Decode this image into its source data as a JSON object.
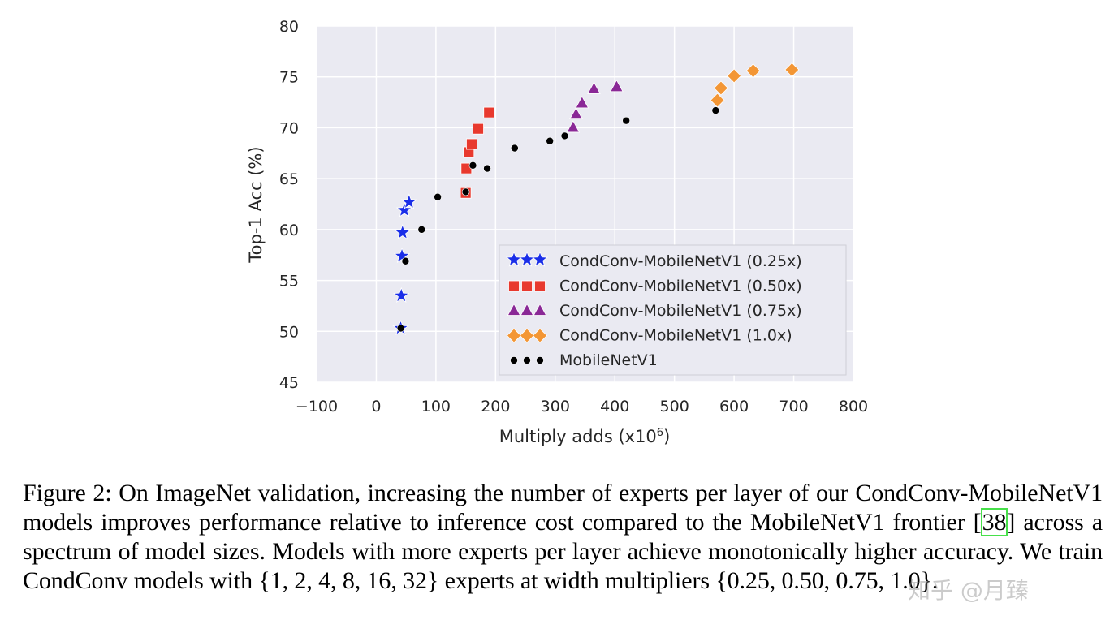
{
  "chart_data": {
    "type": "scatter",
    "title": "",
    "xlabel": "Multiply adds (x10",
    "xlabel_sup": "6",
    "xlabel_end": ")",
    "ylabel": "Top-1 Acc (%)",
    "xlim": [
      -100,
      800
    ],
    "ylim": [
      45,
      80
    ],
    "xticks": [
      -100,
      0,
      100,
      200,
      300,
      400,
      500,
      600,
      700,
      800
    ],
    "xtick_labels": [
      "−100",
      "0",
      "100",
      "200",
      "300",
      "400",
      "500",
      "600",
      "700",
      "800"
    ],
    "yticks": [
      45,
      50,
      55,
      60,
      65,
      70,
      75,
      80
    ],
    "ytick_labels": [
      "45",
      "50",
      "55",
      "60",
      "65",
      "70",
      "75",
      "80"
    ],
    "grid": true,
    "legend_position": "lower-right",
    "series": [
      {
        "name": "CondConv-MobileNetV1 (0.25x)",
        "marker": "star",
        "color": "#1a2ee8",
        "x": [
          41,
          42,
          43,
          44,
          47,
          55
        ],
        "y": [
          50.3,
          53.5,
          57.4,
          59.7,
          61.9,
          62.7
        ]
      },
      {
        "name": "CondConv-MobileNetV1 (0.50x)",
        "marker": "square",
        "color": "#e8392e",
        "x": [
          150,
          151,
          155,
          160,
          171,
          189
        ],
        "y": [
          63.6,
          66.0,
          67.6,
          68.4,
          69.9,
          71.5
        ]
      },
      {
        "name": "CondConv-MobileNetV1 (0.75x)",
        "marker": "triangle",
        "color": "#8a2896",
        "x": [
          330,
          335,
          345,
          365,
          403
        ],
        "y": [
          70.0,
          71.3,
          72.4,
          73.8,
          74.0
        ]
      },
      {
        "name": "CondConv-MobileNetV1 (1.0x)",
        "marker": "diamond",
        "color": "#f39635",
        "x": [
          572,
          578,
          600,
          632,
          697
        ],
        "y": [
          72.7,
          73.9,
          75.1,
          75.6,
          75.7
        ]
      },
      {
        "name": "MobileNetV1",
        "marker": "circle",
        "color": "#000000",
        "x": [
          41,
          49,
          76,
          103,
          150,
          162,
          186,
          232,
          291,
          316,
          419,
          569
        ],
        "y": [
          50.3,
          56.9,
          60.0,
          63.2,
          63.7,
          66.3,
          66.0,
          68.0,
          68.7,
          69.2,
          70.7,
          71.7
        ]
      }
    ]
  },
  "caption": {
    "prefix": "Figure 2: On ImageNet validation, increasing the number of experts per layer of our CondConv-MobileNetV1 models improves performance relative to inference cost compared to the MobileNetV1 frontier [",
    "ref": "38",
    "suffix": "] across a spectrum of model sizes. Models with more experts per layer achieve monotonically higher accuracy. We train CondConv models with {1, 2, 4, 8, 16, 32} experts at width multipliers {0.25, 0.50, 0.75, 1.0}."
  },
  "watermark": "知乎 @月臻"
}
